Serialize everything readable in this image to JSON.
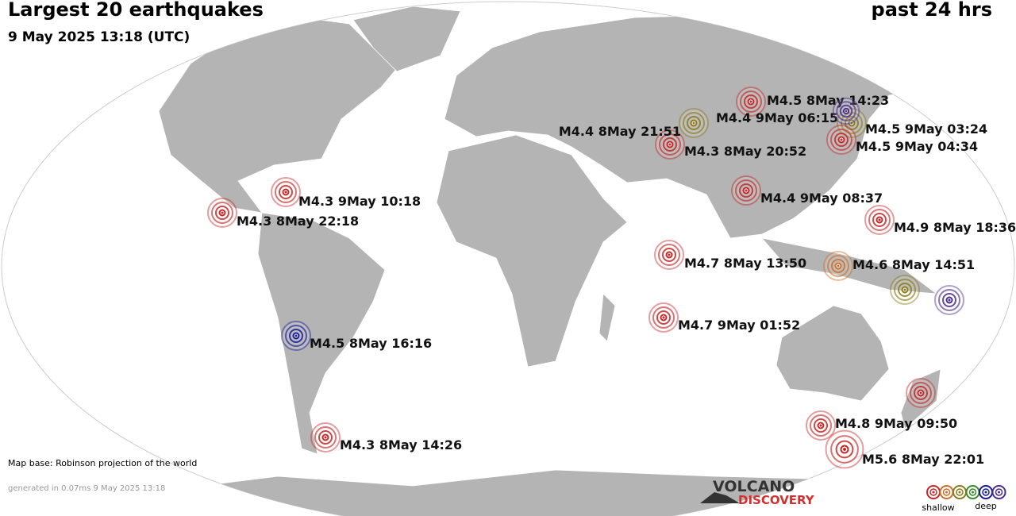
{
  "header": {
    "title": "Largest 20 earthquakes",
    "datetime": "9 May 2025 13:18 (UTC)",
    "period": "past 24 hrs"
  },
  "quakes": [
    {
      "label": "M4.5  8May 14:23",
      "color": "#c62828"
    },
    {
      "label": "M4.4  9May 06:15",
      "color": "#8c7a1a"
    },
    {
      "label": "M4.5  9May 03:24",
      "color": "#8c7a1a"
    },
    {
      "label": "M4.3  8May 20:52",
      "color": "#c62828"
    },
    {
      "label": "M4.5  9May 04:34",
      "color": "#c62828"
    },
    {
      "label": "M4.3  9May 10:18",
      "color": "#c62828"
    },
    {
      "label": "M4.3  8May 22:18",
      "color": "#c62828"
    },
    {
      "label": "M4.4  9May 08:37",
      "color": "#c62828"
    },
    {
      "label": "M4.9  8May 18:36",
      "color": "#c62828"
    },
    {
      "label": "M4.7  8May 13:50",
      "color": "#c62828"
    },
    {
      "label": "M4.6  8May 14:51",
      "color": "#d0702a"
    },
    {
      "label": "M4.7  9May 01:52",
      "color": "#c62828"
    },
    {
      "label": "M4.5  8May 16:16",
      "color": "#1a1a9a"
    },
    {
      "label": "M4.8  9May 09:50",
      "color": "#c62828"
    },
    {
      "label": "M4.3  8May 14:26",
      "color": "#c62828"
    },
    {
      "label": "M5.6  8May 22:01",
      "color": "#c62828"
    },
    {
      "label": "M4.4  8May 21:51",
      "color": "#4b2f8a"
    },
    {
      "label": null,
      "color": "#8c7a1a"
    },
    {
      "label": null,
      "color": "#4b2f8a"
    },
    {
      "label": null,
      "color": "#c62828"
    }
  ],
  "legend": {
    "colors": [
      "#c62828",
      "#d0702a",
      "#8c7a1a",
      "#3a8a2a",
      "#1a1a9a",
      "#4b2f8a"
    ],
    "shallow": "shallow",
    "deep": "deep"
  },
  "footer": {
    "map_base": "Map base: Robinson projection of the world",
    "generated": "generated in 0.07ms  9 May 2025 13:18"
  },
  "logo": {
    "line1": "VOLCANO",
    "line2": "DISCOVERY"
  }
}
